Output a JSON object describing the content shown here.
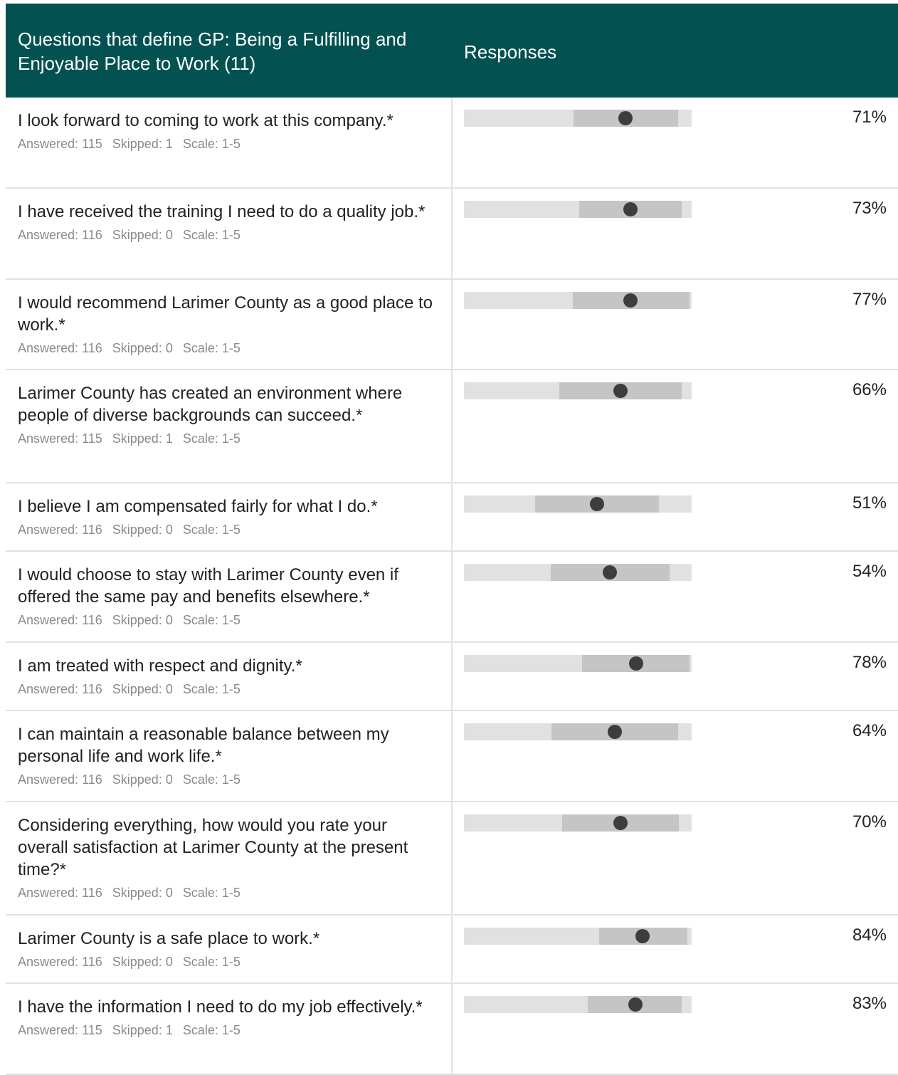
{
  "header": {
    "questions_title": "Questions that define GP: Being a Fulfilling and Enjoyable Place to Work (11)",
    "responses_title": "Responses"
  },
  "labels": {
    "answered": "Answered:",
    "skipped": "Skipped:",
    "scale": "Scale:"
  },
  "questions": [
    {
      "text": "I look forward to coming to work at this company.*",
      "answered": "115",
      "skipped": "1",
      "scale": "1-5",
      "percent": "71%",
      "band_start": 0.48,
      "band_end": 0.94,
      "marker": 0.71
    },
    {
      "text": "I have received the training I need to do a quality job.*",
      "answered": "116",
      "skipped": "0",
      "scale": "1-5",
      "percent": "73%",
      "band_start": 0.505,
      "band_end": 0.955,
      "marker": 0.73
    },
    {
      "text": "I would recommend Larimer County as a good place to work.*",
      "answered": "116",
      "skipped": "0",
      "scale": "1-5",
      "percent": "77%",
      "band_start": 0.477,
      "band_end": 0.99,
      "marker": 0.73
    },
    {
      "text": "Larimer County has created an environment where people of diverse backgrounds can succeed.*",
      "answered": "115",
      "skipped": "1",
      "scale": "1-5",
      "percent": "66%",
      "band_start": 0.418,
      "band_end": 0.955,
      "marker": 0.686
    },
    {
      "text": "I believe I am compensated fairly for what I do.*",
      "answered": "116",
      "skipped": "0",
      "scale": "1-5",
      "percent": "51%",
      "band_start": 0.312,
      "band_end": 0.855,
      "marker": 0.583
    },
    {
      "text": "I would choose to stay with Larimer County even if offered the same pay and benefits elsewhere.*",
      "answered": "116",
      "skipped": "0",
      "scale": "1-5",
      "percent": "54%",
      "band_start": 0.38,
      "band_end": 0.902,
      "marker": 0.64
    },
    {
      "text": "I am treated with respect and dignity.*",
      "answered": "116",
      "skipped": "0",
      "scale": "1-5",
      "percent": "78%",
      "band_start": 0.52,
      "band_end": 0.99,
      "marker": 0.755
    },
    {
      "text": "I can maintain a reasonable balance between my personal life and work life.*",
      "answered": "116",
      "skipped": "0",
      "scale": "1-5",
      "percent": "64%",
      "band_start": 0.383,
      "band_end": 0.94,
      "marker": 0.664
    },
    {
      "text": "Considering everything, how would you rate your overall satisfaction at Larimer County at the present time?*",
      "answered": "116",
      "skipped": "0",
      "scale": "1-5",
      "percent": "70%",
      "band_start": 0.43,
      "band_end": 0.945,
      "marker": 0.689
    },
    {
      "text": "Larimer County is a safe place to work.*",
      "answered": "116",
      "skipped": "0",
      "scale": "1-5",
      "percent": "84%",
      "band_start": 0.593,
      "band_end": 0.98,
      "marker": 0.783
    },
    {
      "text": "I have the information I need to do my job effectively.*",
      "answered": "115",
      "skipped": "1",
      "scale": "1-5",
      "percent": "83%",
      "band_start": 0.545,
      "band_end": 0.957,
      "marker": 0.752
    }
  ],
  "colors": {
    "header_bg": "#035151",
    "track": "#e1e1e1",
    "band": "#c5c5c5",
    "marker": "#3d3d3d"
  }
}
